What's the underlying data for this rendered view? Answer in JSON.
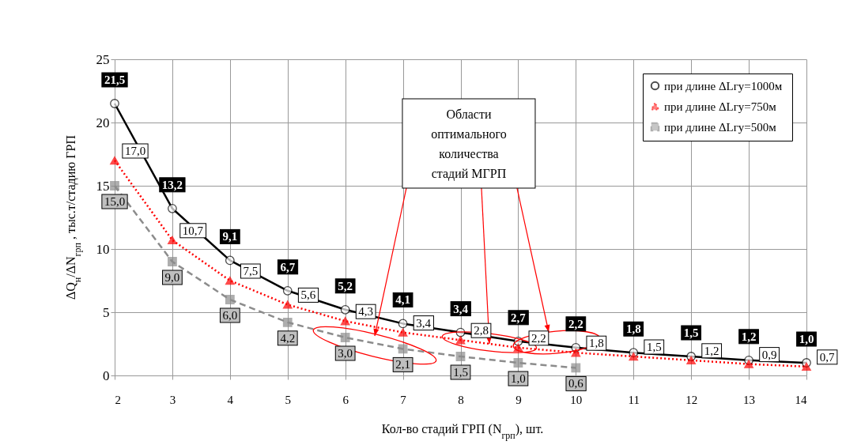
{
  "chart_data": {
    "type": "line",
    "xlabel": "Кол-во стадий ГРП (N$_{грп}$), шт.",
    "ylabel": "ΔQ$_{н}$/ΔN$_{грп}$ , тыс.т/стадию ГРП",
    "x": [
      2,
      3,
      4,
      5,
      6,
      7,
      8,
      9,
      10,
      11,
      12,
      13,
      14
    ],
    "xlim": [
      2,
      14
    ],
    "xticks": [
      2,
      3,
      4,
      5,
      6,
      7,
      8,
      9,
      10,
      11,
      12,
      13,
      14
    ],
    "ylim": [
      0,
      25
    ],
    "yticks": [
      0,
      5,
      10,
      15,
      20,
      25
    ],
    "grid": true,
    "legend": "top right",
    "annotations": [
      {
        "text": "Области\nоптимального\nколичества\nстадий МГРП",
        "x": 8.5,
        "y": 2.5
      }
    ],
    "series": [
      {
        "name": "при длине  ΔLгу=1000м",
        "color": "#000000",
        "marker": "circle",
        "line_style": "solid",
        "values": [
          21.5,
          13.2,
          9.1,
          6.7,
          5.2,
          4.1,
          3.4,
          2.7,
          2.2,
          1.8,
          1.5,
          1.2,
          1.0
        ],
        "value_labels": [
          "21,5",
          "13,2",
          "9,1",
          "6,7",
          "5,2",
          "4,1",
          "3,4",
          "2,7",
          "2,2",
          "1,8",
          "1,5",
          "1,2",
          "1,0"
        ]
      },
      {
        "name": "при длине  ΔLгу=750м",
        "color": "#ff0000",
        "marker": "triangle",
        "line_style": "dotted",
        "values": [
          17.0,
          10.7,
          7.5,
          5.6,
          4.3,
          3.4,
          2.8,
          2.2,
          1.8,
          1.5,
          1.2,
          0.9,
          0.7
        ],
        "value_labels": [
          "17,0",
          "10,7",
          "7,5",
          "5,6",
          "4,3",
          "3,4",
          "2,8",
          "2,2",
          "1,8",
          "1,5",
          "1,2",
          "0,9",
          "0,7"
        ]
      },
      {
        "name": "при длине  ΔLгу=500м",
        "color": "#8c8c8c",
        "marker": "square",
        "line_style": "dashed",
        "values": [
          15.0,
          9.0,
          6.0,
          4.2,
          3.0,
          2.1,
          1.5,
          1.0,
          0.6,
          null,
          null,
          null,
          null
        ],
        "value_labels": [
          "15,0",
          "9,0",
          "6,0",
          "4,2",
          "3,0",
          "2,1",
          "1,5",
          "1,0",
          "0,6",
          null,
          null,
          null,
          null
        ]
      }
    ]
  }
}
